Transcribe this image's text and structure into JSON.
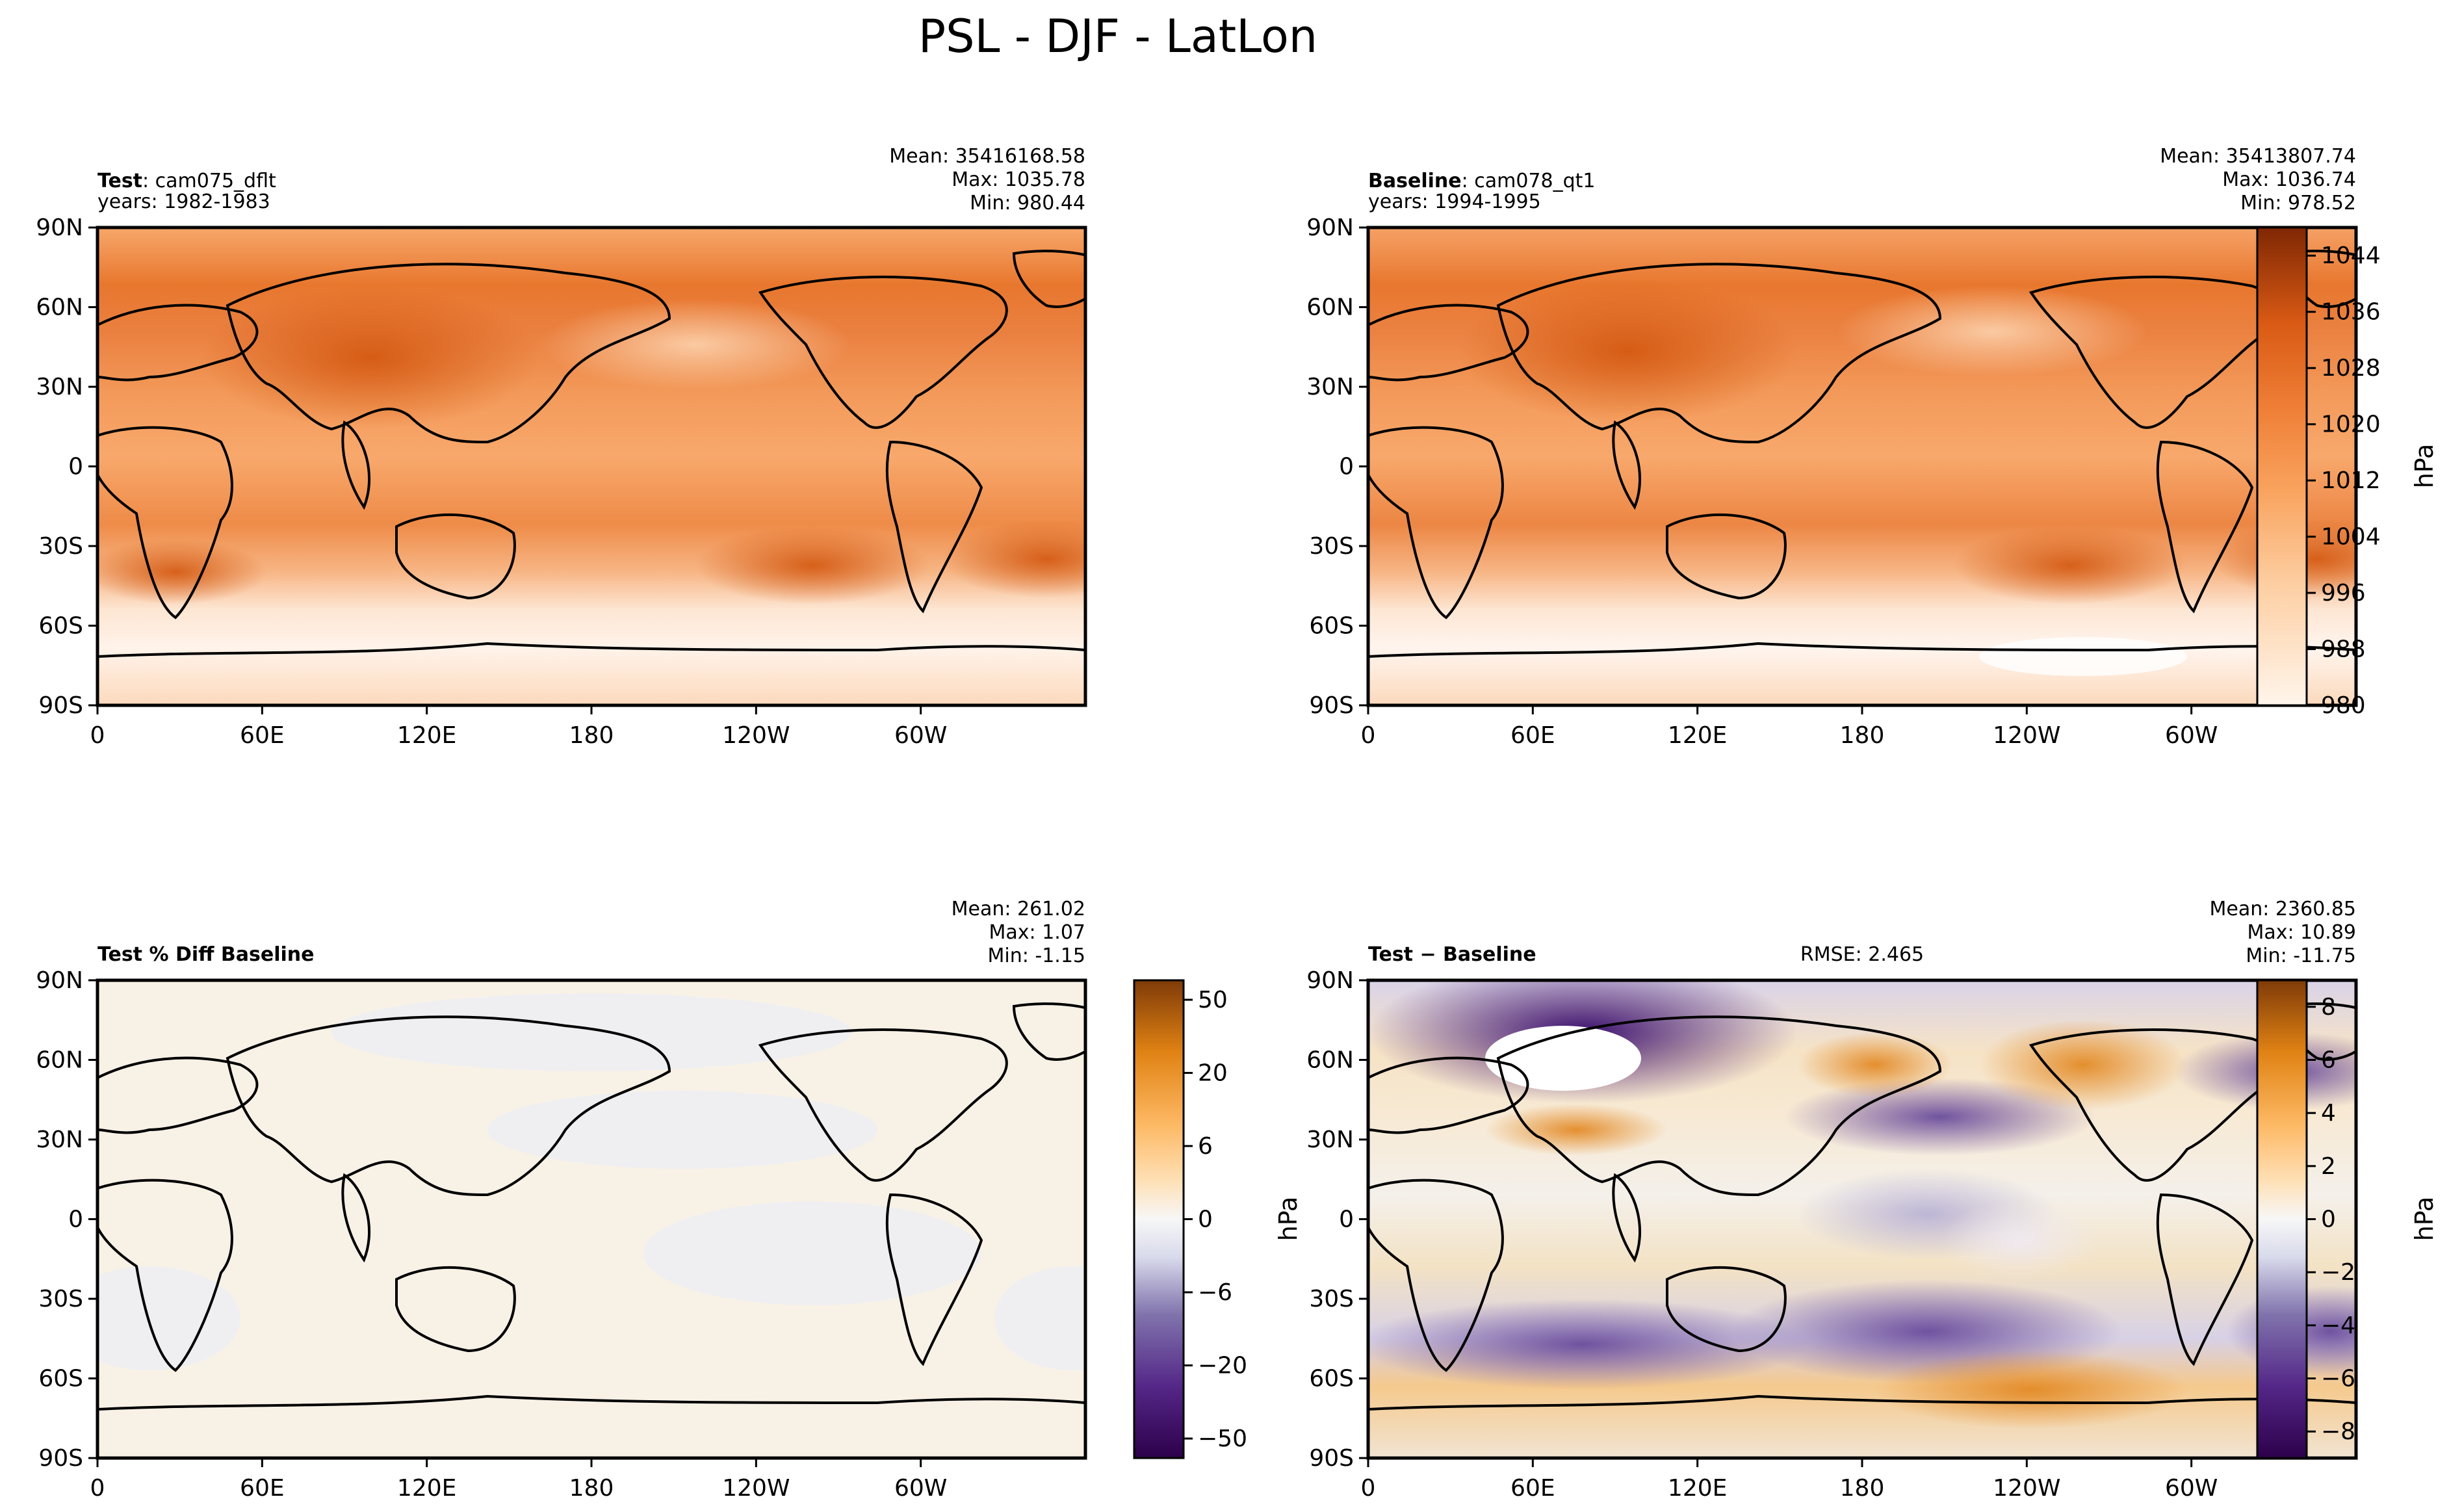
{
  "chart_data": {
    "type": "heatmap",
    "title": "PSL - DJF - LatLon",
    "lat_ticks": [
      "90N",
      "60N",
      "30N",
      "0",
      "30S",
      "60S",
      "90S"
    ],
    "lon_ticks": [
      "0",
      "60E",
      "120E",
      "180",
      "120W",
      "60W"
    ],
    "panels": [
      {
        "id": "test",
        "label_bold": "Test",
        "label_rest": ": cam075_dflt",
        "years": "years: 1982-1983",
        "stats": [
          "Mean: 35416168.58",
          "Max: 1035.78",
          "Min: 980.44"
        ],
        "rmse": "",
        "colormap": "oranges",
        "vmin": 980,
        "vmax": 1048
      },
      {
        "id": "baseline",
        "label_bold": "Baseline",
        "label_rest": ": cam078_qt1",
        "years": "years: 1994-1995",
        "stats": [
          "Mean: 35413807.74",
          "Max: 1036.74",
          "Min: 978.52"
        ],
        "rmse": "",
        "colormap": "oranges",
        "vmin": 980,
        "vmax": 1048
      },
      {
        "id": "pctdiff",
        "label_bold": "Test % Diff Baseline",
        "label_rest": "",
        "years": "",
        "stats": [
          "Mean: 261.02",
          "Max:  1.07",
          "Min: -1.15"
        ],
        "rmse": "",
        "colormap": "puor",
        "vmin": -60,
        "vmax": 60
      },
      {
        "id": "diff",
        "label_bold": "Test − Baseline",
        "label_rest": "",
        "years": "",
        "stats": [
          "Mean: 2360.85",
          "Max: 10.89",
          "Min: -11.75"
        ],
        "rmse": "RMSE: 2.465",
        "colormap": "puor",
        "vmin": -9,
        "vmax": 9
      }
    ],
    "colorbars": [
      {
        "id": "psl",
        "units": "hPa",
        "ticks": [
          "1044",
          "1036",
          "1028",
          "1020",
          "1012",
          "1004",
          "996",
          "988",
          "980"
        ],
        "tick_values": [
          1044,
          1036,
          1028,
          1020,
          1012,
          1004,
          996,
          988,
          980
        ],
        "vmin": 980,
        "vmax": 1048,
        "colormap": "oranges"
      },
      {
        "id": "pct",
        "units": "hPa",
        "ticks": [
          "50",
          "20",
          "6",
          "0",
          "−6",
          "−20",
          "−50"
        ],
        "tick_values": [
          50,
          20,
          6,
          0,
          -6,
          -20,
          -50
        ],
        "vmin": -60,
        "vmax": 60,
        "colormap": "puor"
      },
      {
        "id": "diff",
        "units": "hPa",
        "ticks": [
          "8",
          "6",
          "4",
          "2",
          "0",
          "−2",
          "−4",
          "−6",
          "−8"
        ],
        "tick_values": [
          8,
          6,
          4,
          2,
          0,
          -2,
          -4,
          -6,
          -8
        ],
        "vmin": -9,
        "vmax": 9,
        "colormap": "puor"
      }
    ]
  }
}
